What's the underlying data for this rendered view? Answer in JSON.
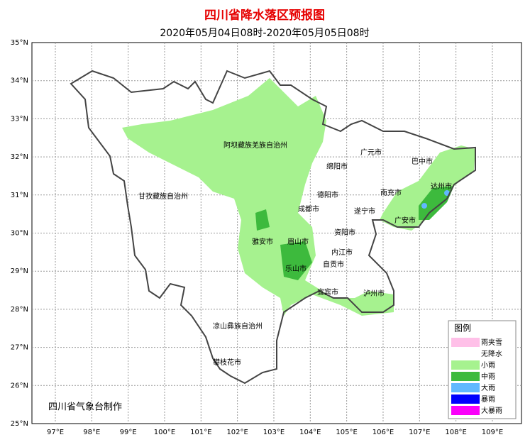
{
  "title": "四川省降水落区预报图",
  "subtitle": "2020年05月04日08时-2020年05月05日08时",
  "lat_labels": [
    "35°N",
    "34°N",
    "33°N",
    "32°N",
    "31°N",
    "30°N",
    "29°N",
    "28°N",
    "27°N",
    "26°N",
    "25°N"
  ],
  "lon_labels": [
    "97°E",
    "98°E",
    "99°E",
    "100°E",
    "101°E",
    "102°E",
    "103°E",
    "104°E",
    "105°E",
    "106°E",
    "107°E",
    "108°E",
    "109°E"
  ],
  "cities": [
    "阿坝藏族羌族自治州",
    "广元市",
    "巴中市",
    "绵阳市",
    "甘孜藏族自治州",
    "德阳市",
    "南充市",
    "达州市",
    "成都市",
    "遂宁市",
    "广安市",
    "资阳市",
    "雅安市",
    "眉山市",
    "内江市",
    "自贡市",
    "乐山市",
    "宜宾市",
    "泸州市",
    "凉山彝族自治州",
    "攀枝花市"
  ],
  "legend": {
    "title": "图例",
    "items": [
      {
        "label": "雨夹雪",
        "color": "#ffc0e8"
      },
      {
        "label": "无降水",
        "color": "#ffffff"
      },
      {
        "label": "小雨",
        "color": "#a6f28f"
      },
      {
        "label": "中雨",
        "color": "#3dba3d"
      },
      {
        "label": "大雨",
        "color": "#61b8ff"
      },
      {
        "label": "暴雨",
        "color": "#0000fe"
      },
      {
        "label": "大暴雨",
        "color": "#fa00fa"
      }
    ]
  },
  "credit": "四川省气象台制作"
}
